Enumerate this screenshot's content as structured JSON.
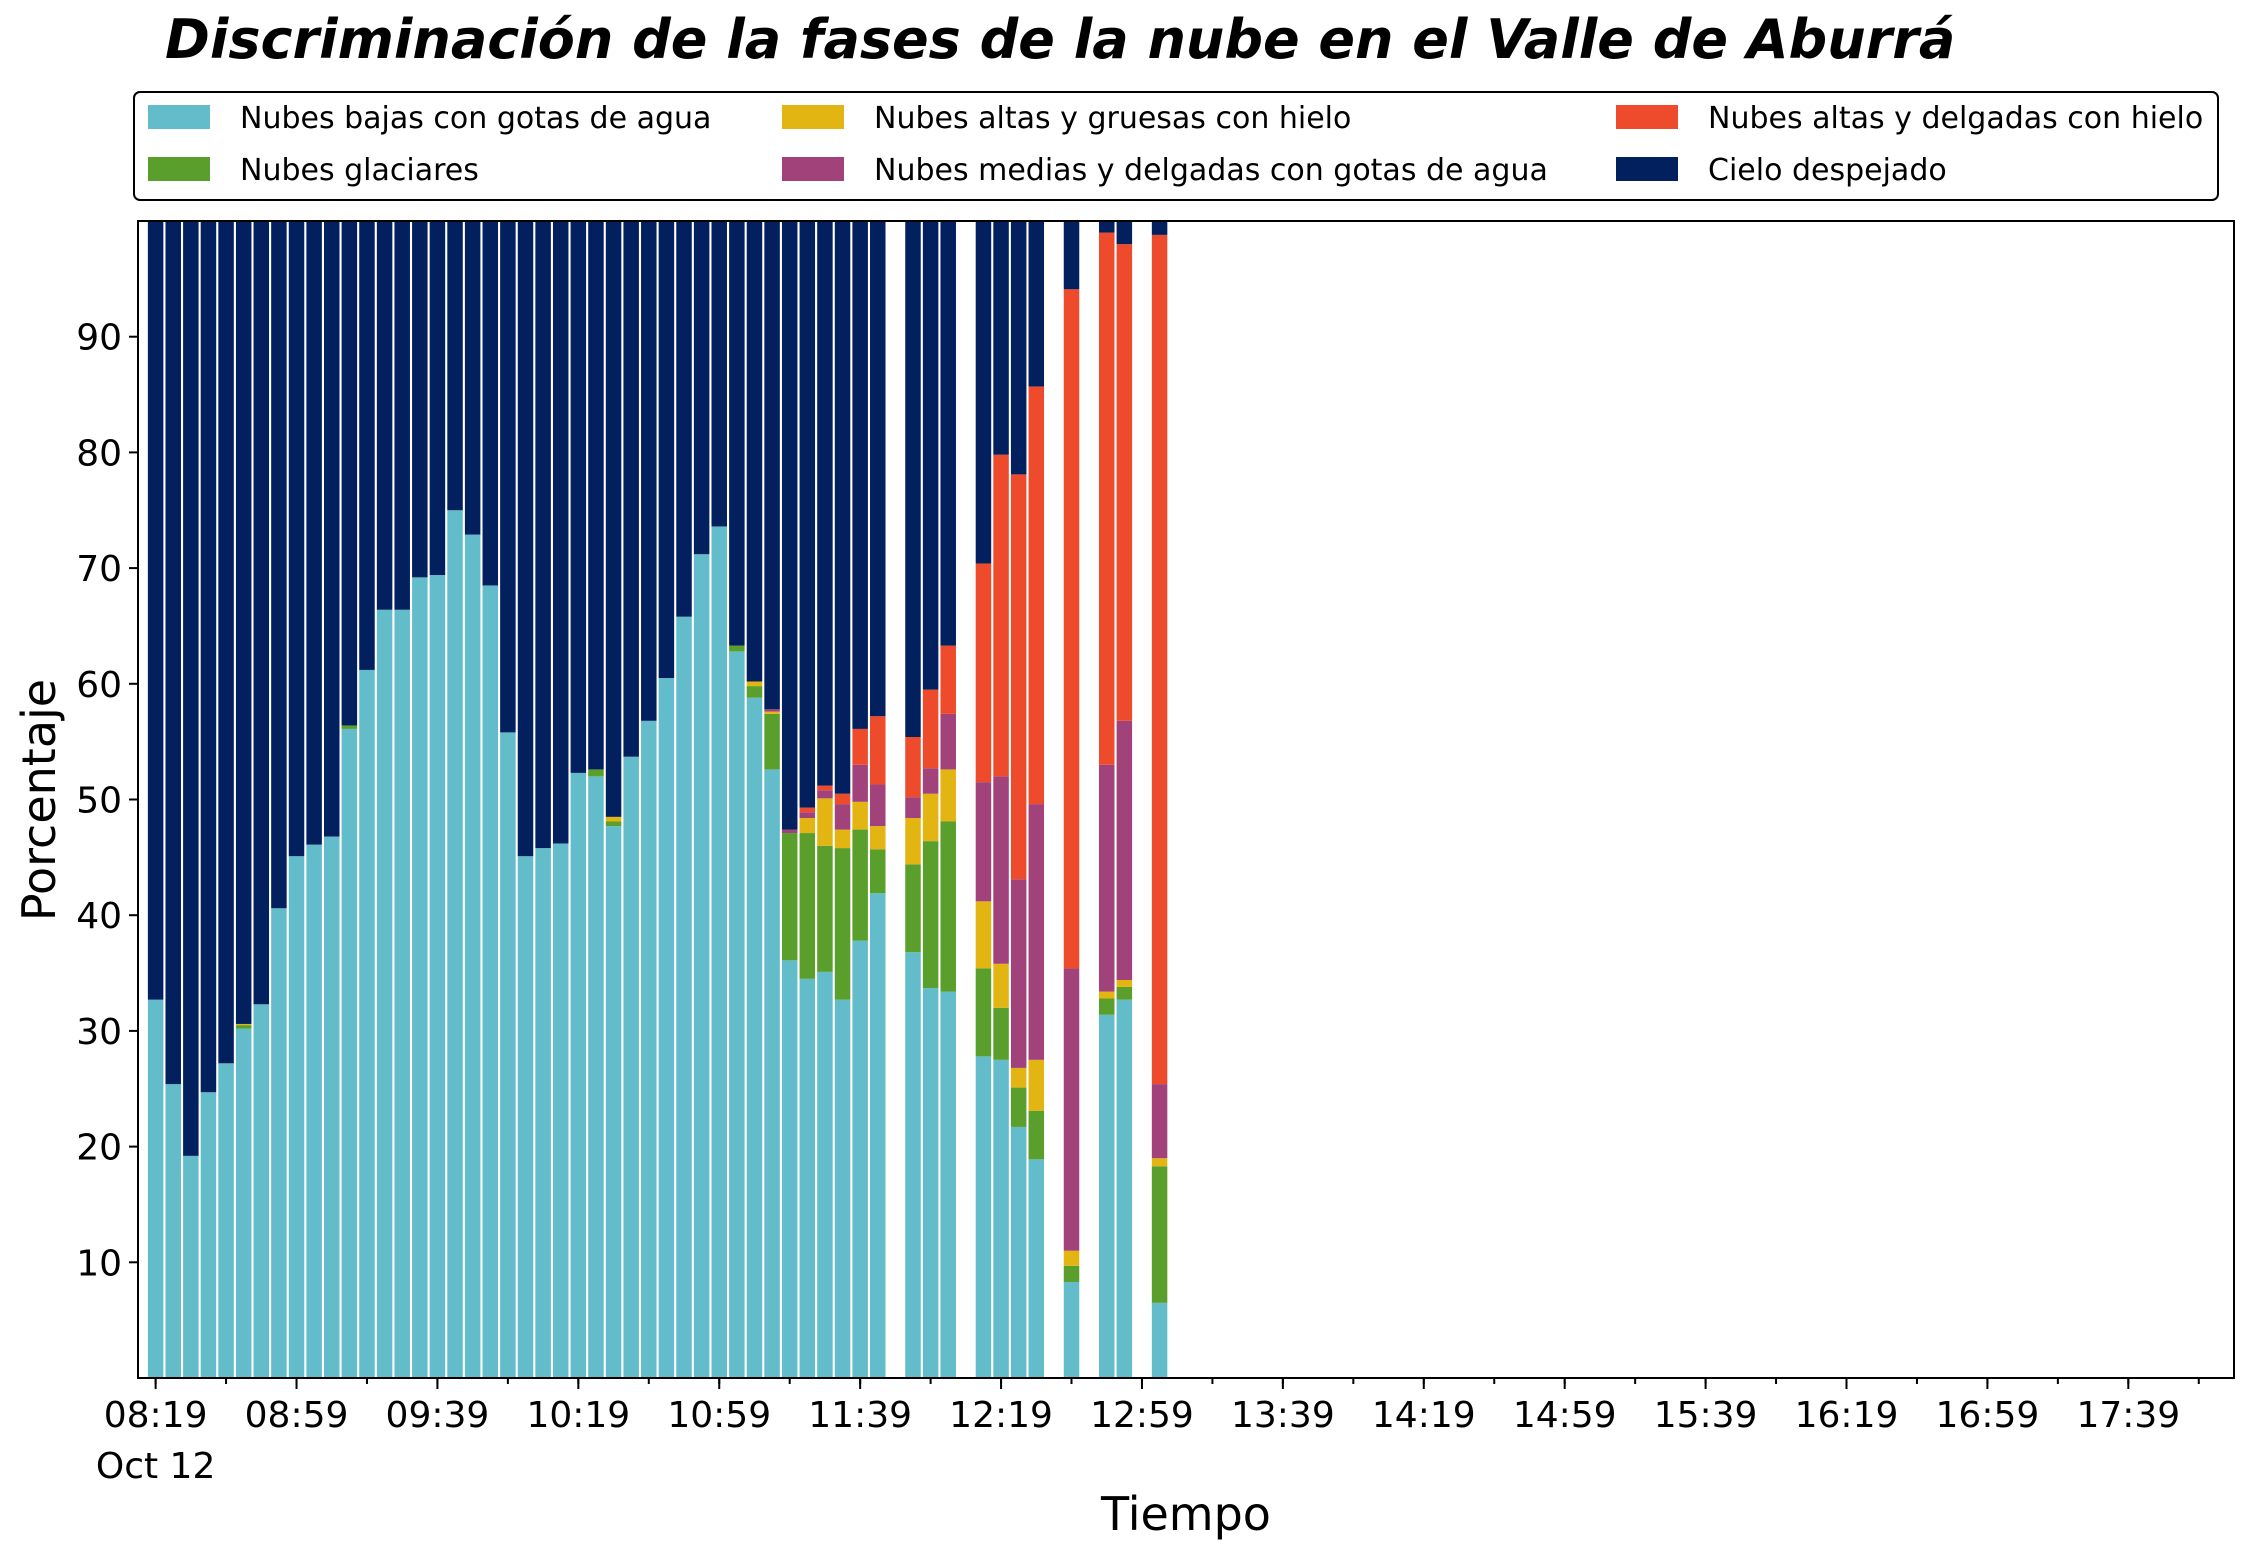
{
  "chart_data": {
    "type": "bar",
    "stacked": true,
    "title": "Discriminación de la fases de la nube en el Valle de Aburrá",
    "xlabel": "Tiempo",
    "ylabel": "Porcentaje",
    "ylim": [
      0,
      100
    ],
    "yticks": [
      10,
      20,
      30,
      40,
      50,
      60,
      70,
      80,
      90
    ],
    "x_time_range": [
      "08:14",
      "18:09"
    ],
    "x_major_ticks": [
      {
        "time": "08:19",
        "label": "08:19",
        "sublabel": "Oct 12"
      },
      {
        "time": "08:59",
        "label": "08:59"
      },
      {
        "time": "09:39",
        "label": "09:39"
      },
      {
        "time": "10:19",
        "label": "10:19"
      },
      {
        "time": "10:59",
        "label": "10:59"
      },
      {
        "time": "11:39",
        "label": "11:39"
      },
      {
        "time": "12:19",
        "label": "12:19"
      },
      {
        "time": "12:59",
        "label": "12:59"
      },
      {
        "time": "13:39",
        "label": "13:39"
      },
      {
        "time": "14:19",
        "label": "14:19"
      },
      {
        "time": "14:59",
        "label": "14:59"
      },
      {
        "time": "15:39",
        "label": "15:39"
      },
      {
        "time": "16:19",
        "label": "16:19"
      },
      {
        "time": "16:59",
        "label": "16:59"
      },
      {
        "time": "17:39",
        "label": "17:39"
      }
    ],
    "grid": false,
    "legend_placement": "top, outside plot, 3 columns",
    "series": [
      {
        "name": "Nubes bajas con gotas de agua",
        "color": "#63bcc9"
      },
      {
        "name": "Nubes glaciares",
        "color": "#5a9e2c"
      },
      {
        "name": "Nubes altas y gruesas con hielo",
        "color": "#e3b512"
      },
      {
        "name": "Nubes medias y delgadas con gotas de agua",
        "color": "#a1427a"
      },
      {
        "name": "Nubes altas y delgadas con hielo",
        "color": "#ee4a2c"
      },
      {
        "name": "Cielo despejado",
        "color": "#03205e"
      }
    ],
    "legend_order": [
      0,
      2,
      4,
      1,
      3,
      5
    ],
    "bars": [
      {
        "time": "08:19",
        "values": [
          32.7,
          0,
          0,
          0,
          0,
          67.3
        ]
      },
      {
        "time": "08:24",
        "values": [
          25.4,
          0,
          0,
          0,
          0,
          74.6
        ]
      },
      {
        "time": "08:29",
        "values": [
          19.2,
          0,
          0,
          0,
          0,
          80.8
        ]
      },
      {
        "time": "08:34",
        "values": [
          24.7,
          0,
          0,
          0,
          0,
          75.3
        ]
      },
      {
        "time": "08:39",
        "values": [
          27.2,
          0,
          0,
          0,
          0,
          72.8
        ]
      },
      {
        "time": "08:44",
        "values": [
          30.2,
          0.3,
          0.1,
          0,
          0,
          69.4
        ]
      },
      {
        "time": "08:49",
        "values": [
          32.3,
          0,
          0,
          0,
          0,
          67.7
        ]
      },
      {
        "time": "08:54",
        "values": [
          40.6,
          0,
          0,
          0,
          0,
          59.4
        ]
      },
      {
        "time": "08:59",
        "values": [
          45.1,
          0,
          0,
          0,
          0,
          54.9
        ]
      },
      {
        "time": "09:04",
        "values": [
          46.1,
          0,
          0,
          0,
          0,
          53.9
        ]
      },
      {
        "time": "09:09",
        "values": [
          46.8,
          0,
          0,
          0,
          0,
          53.2
        ]
      },
      {
        "time": "09:14",
        "values": [
          56.1,
          0.3,
          0,
          0,
          0,
          43.6
        ]
      },
      {
        "time": "09:19",
        "values": [
          61.2,
          0,
          0,
          0,
          0,
          38.8
        ]
      },
      {
        "time": "09:24",
        "values": [
          66.4,
          0,
          0,
          0,
          0,
          33.6
        ]
      },
      {
        "time": "09:29",
        "values": [
          66.4,
          0,
          0,
          0,
          0,
          33.6
        ]
      },
      {
        "time": "09:34",
        "values": [
          69.2,
          0,
          0,
          0,
          0,
          30.8
        ]
      },
      {
        "time": "09:39",
        "values": [
          69.4,
          0,
          0,
          0,
          0,
          30.6
        ]
      },
      {
        "time": "09:44",
        "values": [
          75.0,
          0,
          0,
          0,
          0,
          25.0
        ]
      },
      {
        "time": "09:49",
        "values": [
          72.9,
          0,
          0,
          0,
          0,
          27.1
        ]
      },
      {
        "time": "09:54",
        "values": [
          68.5,
          0,
          0,
          0,
          0,
          31.5
        ]
      },
      {
        "time": "09:59",
        "values": [
          55.8,
          0,
          0,
          0,
          0,
          44.2
        ]
      },
      {
        "time": "10:04",
        "values": [
          45.1,
          0,
          0,
          0,
          0,
          54.9
        ]
      },
      {
        "time": "10:09",
        "values": [
          45.8,
          0,
          0,
          0,
          0,
          54.2
        ]
      },
      {
        "time": "10:14",
        "values": [
          46.2,
          0,
          0,
          0,
          0,
          53.8
        ]
      },
      {
        "time": "10:19",
        "values": [
          52.3,
          0,
          0,
          0,
          0,
          47.7
        ]
      },
      {
        "time": "10:24",
        "values": [
          52.0,
          0.6,
          0,
          0,
          0,
          47.4
        ]
      },
      {
        "time": "10:29",
        "values": [
          47.7,
          0.4,
          0.4,
          0,
          0,
          51.5
        ]
      },
      {
        "time": "10:34",
        "values": [
          53.7,
          0,
          0,
          0,
          0,
          46.3
        ]
      },
      {
        "time": "10:39",
        "values": [
          56.8,
          0,
          0,
          0,
          0,
          43.2
        ]
      },
      {
        "time": "10:44",
        "values": [
          60.5,
          0,
          0,
          0,
          0,
          39.5
        ]
      },
      {
        "time": "10:49",
        "values": [
          65.8,
          0,
          0,
          0,
          0,
          34.2
        ]
      },
      {
        "time": "10:54",
        "values": [
          71.2,
          0,
          0,
          0,
          0,
          28.8
        ]
      },
      {
        "time": "10:59",
        "values": [
          73.6,
          0,
          0,
          0,
          0,
          26.4
        ]
      },
      {
        "time": "11:04",
        "values": [
          62.8,
          0.5,
          0,
          0,
          0,
          36.7
        ]
      },
      {
        "time": "11:09",
        "values": [
          58.8,
          1.0,
          0.4,
          0,
          0,
          39.8
        ]
      },
      {
        "time": "11:14",
        "values": [
          52.6,
          4.8,
          0.2,
          0.2,
          0,
          42.2
        ]
      },
      {
        "time": "11:19",
        "values": [
          36.1,
          11.0,
          0,
          0.3,
          0,
          52.6
        ]
      },
      {
        "time": "11:24",
        "values": [
          34.5,
          12.6,
          1.3,
          0.5,
          0.4,
          50.7
        ]
      },
      {
        "time": "11:29",
        "values": [
          35.1,
          10.9,
          4.1,
          0.7,
          0.4,
          48.8
        ]
      },
      {
        "time": "11:34",
        "values": [
          32.7,
          13.1,
          1.6,
          2.2,
          0.9,
          49.5
        ]
      },
      {
        "time": "11:39",
        "values": [
          37.8,
          9.6,
          2.4,
          3.2,
          3.1,
          43.9
        ]
      },
      {
        "time": "11:44",
        "values": [
          41.9,
          3.8,
          2.0,
          3.6,
          5.9,
          42.8
        ]
      },
      {
        "time": "11:54",
        "values": [
          36.8,
          7.6,
          4.0,
          1.8,
          5.2,
          44.6
        ]
      },
      {
        "time": "11:59",
        "values": [
          33.7,
          12.7,
          4.1,
          2.2,
          6.8,
          40.5
        ]
      },
      {
        "time": "12:04",
        "values": [
          33.4,
          14.7,
          4.5,
          4.8,
          5.9,
          36.7
        ]
      },
      {
        "time": "12:14",
        "values": [
          27.8,
          7.6,
          5.8,
          10.3,
          18.9,
          29.6
        ]
      },
      {
        "time": "12:19",
        "values": [
          27.5,
          4.5,
          3.8,
          16.2,
          27.8,
          20.2
        ]
      },
      {
        "time": "12:24",
        "values": [
          21.7,
          3.4,
          1.7,
          16.3,
          35.0,
          21.9
        ]
      },
      {
        "time": "12:29",
        "values": [
          18.9,
          4.2,
          4.4,
          22.1,
          36.1,
          14.3
        ]
      },
      {
        "time": "12:39",
        "values": [
          8.3,
          1.4,
          1.3,
          24.4,
          58.7,
          5.9
        ]
      },
      {
        "time": "12:49",
        "values": [
          31.4,
          1.4,
          0.6,
          19.6,
          46.0,
          1.0
        ]
      },
      {
        "time": "12:54",
        "values": [
          32.7,
          1.1,
          0.6,
          22.4,
          41.2,
          2.0
        ]
      },
      {
        "time": "13:04",
        "values": [
          6.5,
          11.8,
          0.7,
          6.4,
          73.4,
          1.2
        ]
      }
    ]
  }
}
